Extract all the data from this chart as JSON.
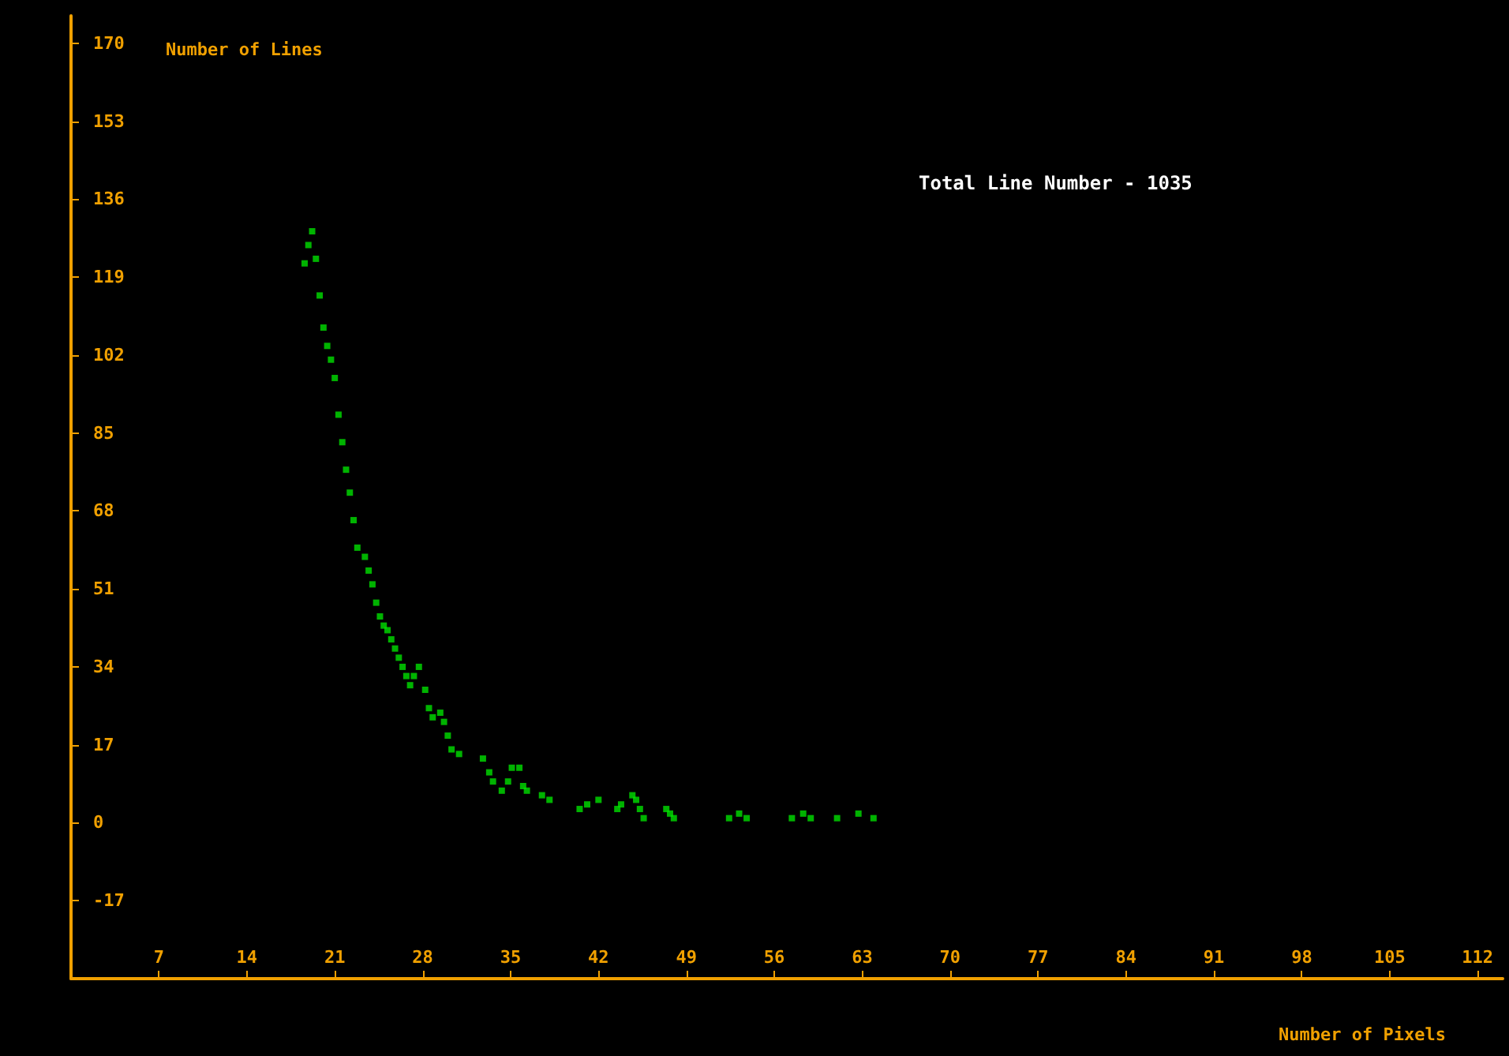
{
  "chart_data": {
    "type": "scatter",
    "xlabel": "Number of Pixels",
    "ylabel": "Number of Lines",
    "annotations": [
      "Total Line Number - 1035"
    ],
    "x": [
      18.6,
      18.9,
      19.2,
      19.5,
      19.8,
      20.1,
      20.4,
      20.7,
      21.0,
      21.3,
      21.6,
      21.9,
      22.2,
      22.5,
      22.8,
      23.4,
      23.7,
      24.0,
      24.3,
      24.6,
      24.9,
      25.2,
      25.5,
      25.8,
      26.1,
      26.4,
      26.7,
      27.0,
      27.3,
      27.7,
      28.2,
      28.5,
      28.8,
      29.4,
      29.7,
      30.0,
      30.3,
      30.9,
      32.8,
      33.3,
      33.6,
      34.3,
      34.8,
      35.1,
      35.7,
      36.0,
      36.3,
      37.5,
      38.1,
      40.5,
      41.1,
      42.0,
      43.5,
      43.8,
      44.7,
      45.0,
      45.3,
      45.6,
      47.4,
      47.7,
      48.0,
      52.4,
      53.2,
      53.8,
      57.4,
      58.3,
      58.9,
      61.0,
      62.7,
      63.9
    ],
    "series": [
      {
        "color": "#00e000",
        "values": [
          122,
          126,
          129,
          123,
          115,
          108,
          104,
          101,
          97,
          89,
          83,
          77,
          72,
          66,
          60,
          58,
          55,
          52,
          48,
          45,
          43,
          42,
          40,
          38,
          36,
          34,
          32,
          30,
          32,
          34,
          29,
          25,
          23,
          24,
          22,
          19,
          16,
          15,
          14,
          11,
          9,
          7,
          9,
          12,
          12,
          8,
          7,
          6,
          5,
          3,
          4,
          5,
          3,
          4,
          6,
          5,
          3,
          1,
          3,
          2,
          1,
          1,
          2,
          1,
          1,
          2,
          1,
          1,
          2,
          1
        ]
      }
    ],
    "xlim": [
      0,
      114
    ],
    "xticks": [
      7,
      14,
      21,
      28,
      35,
      42,
      49,
      56,
      63,
      70,
      77,
      84,
      91,
      98,
      105,
      112
    ],
    "ylim": [
      -34,
      176
    ],
    "yticks": [
      -17,
      0,
      17,
      34,
      51,
      68,
      85,
      102,
      119,
      136,
      153,
      170
    ],
    "marker": "square"
  }
}
